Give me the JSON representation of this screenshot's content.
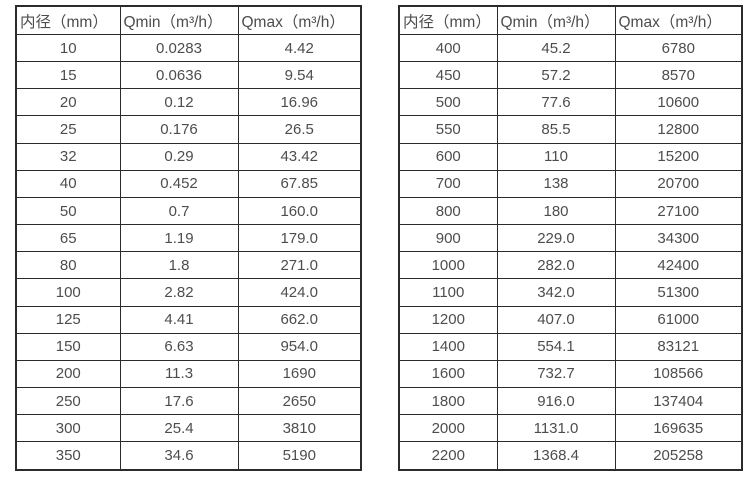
{
  "colors": {
    "border": "#2b2b2b",
    "text": "#4d4d4d",
    "background": "#ffffff"
  },
  "tables": [
    {
      "name": "flow-rate-table-small-diameters",
      "headers": [
        "内径（mm）",
        "Qmin（m³/h）",
        "Qmax（m³/h）"
      ],
      "rows": [
        [
          "10",
          "0.0283",
          "4.42"
        ],
        [
          "15",
          "0.0636",
          "9.54"
        ],
        [
          "20",
          "0.12",
          "16.96"
        ],
        [
          "25",
          "0.176",
          "26.5"
        ],
        [
          "32",
          "0.29",
          "43.42"
        ],
        [
          "40",
          "0.452",
          "67.85"
        ],
        [
          "50",
          "0.7",
          "160.0"
        ],
        [
          "65",
          "1.19",
          "179.0"
        ],
        [
          "80",
          "1.8",
          "271.0"
        ],
        [
          "100",
          "2.82",
          "424.0"
        ],
        [
          "125",
          "4.41",
          "662.0"
        ],
        [
          "150",
          "6.63",
          "954.0"
        ],
        [
          "200",
          "11.3",
          "1690"
        ],
        [
          "250",
          "17.6",
          "2650"
        ],
        [
          "300",
          "25.4",
          "3810"
        ],
        [
          "350",
          "34.6",
          "5190"
        ]
      ]
    },
    {
      "name": "flow-rate-table-large-diameters",
      "headers": [
        "内径（mm）",
        "Qmin（m³/h）",
        "Qmax（m³/h）"
      ],
      "rows": [
        [
          "400",
          "45.2",
          "6780"
        ],
        [
          "450",
          "57.2",
          "8570"
        ],
        [
          "500",
          "77.6",
          "10600"
        ],
        [
          "550",
          "85.5",
          "12800"
        ],
        [
          "600",
          "110",
          "15200"
        ],
        [
          "700",
          "138",
          "20700"
        ],
        [
          "800",
          "180",
          "27100"
        ],
        [
          "900",
          "229.0",
          "34300"
        ],
        [
          "1000",
          "282.0",
          "42400"
        ],
        [
          "1100",
          "342.0",
          "51300"
        ],
        [
          "1200",
          "407.0",
          "61000"
        ],
        [
          "1400",
          "554.1",
          "83121"
        ],
        [
          "1600",
          "732.7",
          "108566"
        ],
        [
          "1800",
          "916.0",
          "137404"
        ],
        [
          "2000",
          "1131.0",
          "169635"
        ],
        [
          "2200",
          "1368.4",
          "205258"
        ]
      ]
    }
  ]
}
